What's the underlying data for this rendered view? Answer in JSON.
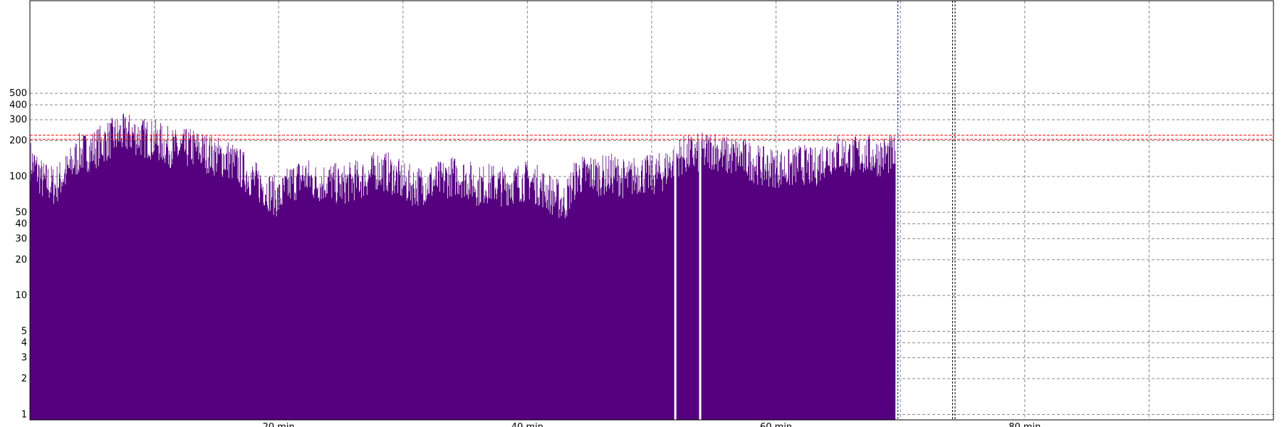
{
  "chart_data": {
    "type": "area",
    "title": "",
    "xlabel": "",
    "ylabel": "",
    "xlim": [
      0,
      100
    ],
    "y_scale": "log",
    "ylim": [
      0.9,
      3000
    ],
    "x_ticks": [
      {
        "value": 10,
        "label": ""
      },
      {
        "value": 20,
        "label": "20 min"
      },
      {
        "value": 30,
        "label": ""
      },
      {
        "value": 40,
        "label": "40 min"
      },
      {
        "value": 50,
        "label": ""
      },
      {
        "value": 60,
        "label": "60 min"
      },
      {
        "value": 70,
        "label": ""
      },
      {
        "value": 80,
        "label": "80 min"
      },
      {
        "value": 90,
        "label": ""
      }
    ],
    "y_ticks": [
      {
        "value": 1,
        "label": "1"
      },
      {
        "value": 2,
        "label": "2"
      },
      {
        "value": 3,
        "label": "3"
      },
      {
        "value": 4,
        "label": "4"
      },
      {
        "value": 5,
        "label": "5"
      },
      {
        "value": 10,
        "label": "10"
      },
      {
        "value": 20,
        "label": "20"
      },
      {
        "value": 30,
        "label": "30"
      },
      {
        "value": 40,
        "label": "40"
      },
      {
        "value": 50,
        "label": "50"
      },
      {
        "value": 100,
        "label": "100"
      },
      {
        "value": 200,
        "label": "200"
      },
      {
        "value": 300,
        "label": "300"
      },
      {
        "value": 400,
        "label": "400"
      },
      {
        "value": 500,
        "label": "500"
      }
    ],
    "grid": true,
    "fill_color": "#55007f",
    "series": [
      {
        "x": [
          0,
          1,
          2,
          3,
          4,
          5,
          6,
          7,
          8,
          9,
          10,
          11,
          12,
          13,
          14,
          15,
          16,
          17,
          18,
          19,
          20,
          21,
          22,
          23,
          24,
          25,
          26,
          27,
          28,
          29,
          30,
          31,
          32,
          33,
          34,
          35,
          36,
          37,
          38,
          39,
          40,
          41,
          42,
          43,
          44,
          45,
          46,
          47,
          48,
          49,
          50,
          51,
          52,
          53,
          54,
          55,
          56,
          57,
          58,
          59,
          60,
          61,
          62,
          63,
          64,
          65,
          66,
          67,
          68,
          69,
          69.6
        ],
        "y": [
          150,
          100,
          90,
          120,
          170,
          180,
          210,
          240,
          250,
          230,
          220,
          195,
          180,
          190,
          175,
          160,
          150,
          125,
          100,
          85,
          70,
          95,
          110,
          95,
          100,
          90,
          100,
          105,
          125,
          115,
          95,
          90,
          95,
          100,
          110,
          105,
          90,
          95,
          90,
          95,
          100,
          90,
          75,
          65,
          110,
          115,
          110,
          115,
          100,
          115,
          110,
          120,
          160,
          165,
          170,
          185,
          160,
          160,
          145,
          130,
          130,
          125,
          140,
          125,
          160,
          170,
          160,
          165,
          160,
          165,
          160
        ]
      }
    ],
    "threshold_lines": [
      {
        "value": 222,
        "color": "#ff0000"
      },
      {
        "value": 205,
        "color": "#ff0000"
      }
    ],
    "vertical_markers": [
      {
        "value": 69.8,
        "color": "#0000ff"
      },
      {
        "value": 74.2,
        "color": "#000000"
      },
      {
        "value": 74.4,
        "color": "#000000"
      }
    ],
    "gaps": [
      51.9,
      53.9
    ]
  }
}
